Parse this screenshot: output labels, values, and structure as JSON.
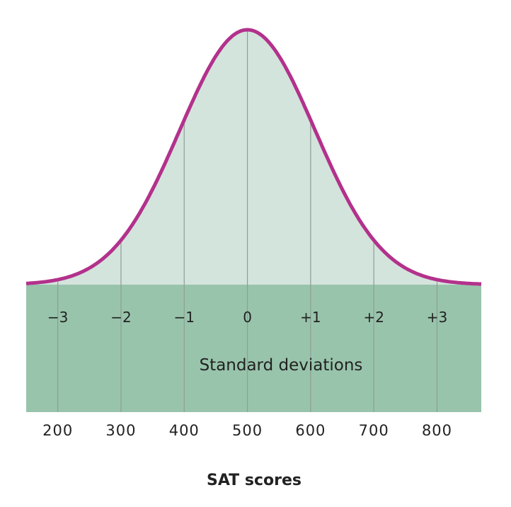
{
  "chart_data": {
    "type": "area",
    "title": "",
    "xlabel": "SAT scores",
    "band_label": "Standard deviations",
    "distribution": "normal",
    "mean": 500,
    "sd": 100,
    "sd_ticks": [
      "−3",
      "−2",
      "−1",
      "0",
      "+1",
      "+2",
      "+3"
    ],
    "score_ticks": [
      200,
      300,
      400,
      500,
      600,
      700,
      800
    ],
    "xlim": [
      150,
      870
    ],
    "colors": {
      "curve": "#b3318c",
      "area_fill": "#d3e4dc",
      "band_fill": "#98c4ab",
      "gridline": "#8e9e95",
      "text": "#222222"
    }
  }
}
